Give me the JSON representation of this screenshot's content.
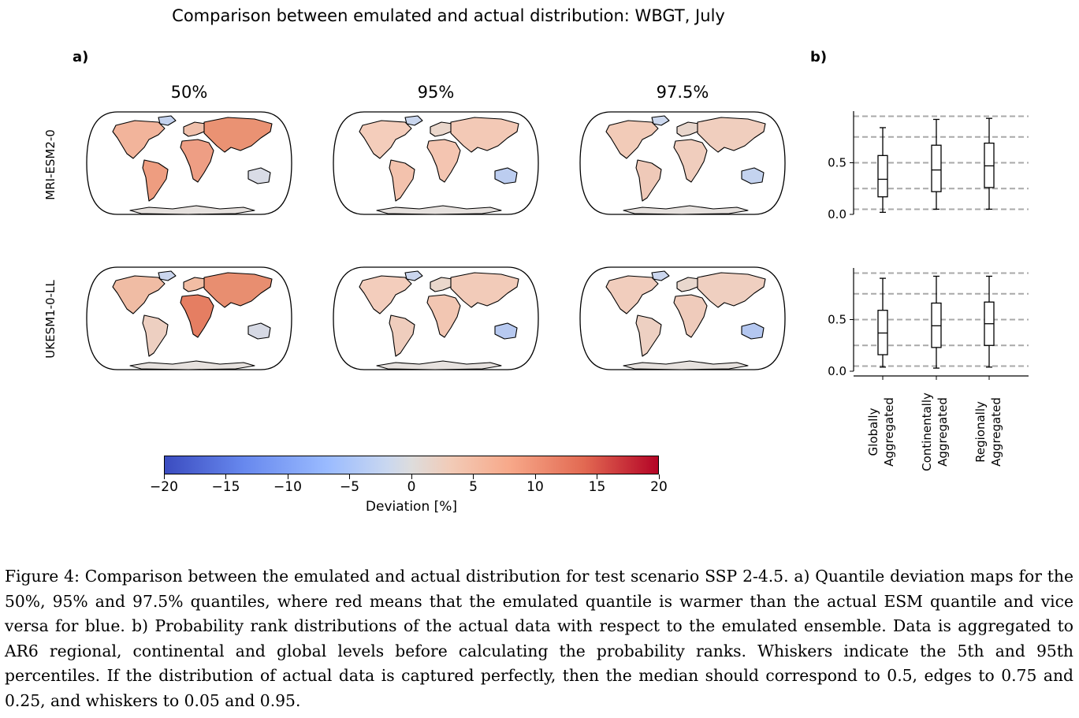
{
  "figure_title": "Comparison between emulated and actual distribution: WBGT, July",
  "panel_a_label": "a)",
  "panel_b_label": "b)",
  "quantile_columns": [
    "50%",
    "95%",
    "97.5%"
  ],
  "model_rows": [
    "MRI-ESM2-0",
    "UKESM1-0-LL"
  ],
  "colorbar": {
    "label": "Deviation [%]",
    "ticks": [
      "−20",
      "−15",
      "−10",
      "−5",
      "0",
      "5",
      "10",
      "15",
      "20"
    ],
    "range": [
      -20,
      20
    ],
    "colors": [
      "#3b4cc0",
      "#dddcdc",
      "#b40426"
    ]
  },
  "rank_panel": {
    "ytick_labels": [
      "0.0",
      "0.5"
    ],
    "category_labels": [
      [
        "Globally",
        "Aggregated"
      ],
      [
        "Continentally",
        "Aggregated"
      ],
      [
        "Regionally",
        "Aggregated"
      ]
    ],
    "reference_lines": [
      0.05,
      0.25,
      0.5,
      0.75,
      0.95
    ]
  },
  "chart_data": [
    {
      "type": "box",
      "title": "",
      "model": "MRI-ESM2-0",
      "categories": [
        "Globally Aggregated",
        "Continentally Aggregated",
        "Regionally Aggregated"
      ],
      "boxes": [
        {
          "whisker_low": 0.02,
          "q1": 0.17,
          "median": 0.34,
          "q3": 0.57,
          "whisker_high": 0.84
        },
        {
          "whisker_low": 0.05,
          "q1": 0.22,
          "median": 0.43,
          "q3": 0.67,
          "whisker_high": 0.92
        },
        {
          "whisker_low": 0.05,
          "q1": 0.26,
          "median": 0.47,
          "q3": 0.69,
          "whisker_high": 0.93
        }
      ],
      "reference_lines": [
        0.05,
        0.25,
        0.5,
        0.75,
        0.95
      ],
      "ylim": [
        0,
        1
      ],
      "yticks": [
        0.0,
        0.5
      ]
    },
    {
      "type": "box",
      "title": "",
      "model": "UKESM1-0-LL",
      "categories": [
        "Globally Aggregated",
        "Continentally Aggregated",
        "Regionally Aggregated"
      ],
      "boxes": [
        {
          "whisker_low": 0.04,
          "q1": 0.16,
          "median": 0.37,
          "q3": 0.59,
          "whisker_high": 0.9
        },
        {
          "whisker_low": 0.03,
          "q1": 0.23,
          "median": 0.44,
          "q3": 0.66,
          "whisker_high": 0.92
        },
        {
          "whisker_low": 0.04,
          "q1": 0.25,
          "median": 0.46,
          "q3": 0.67,
          "whisker_high": 0.92
        }
      ],
      "reference_lines": [
        0.05,
        0.25,
        0.5,
        0.75,
        0.95
      ],
      "ylim": [
        0,
        1
      ],
      "yticks": [
        0.0,
        0.5
      ]
    }
  ],
  "caption": "Figure 4: Comparison between the emulated and actual distribution for test scenario SSP 2-4.5. a) Quantile deviation maps for the 50%, 95% and 97.5% quantiles, where red means that the emulated quantile is warmer than the actual ESM quantile and vice versa for blue. b) Probability rank distributions of the actual data with respect to the emulated ensemble. Data is aggregated to AR6 regional, continental and global levels before calculating the probability ranks. Whiskers indicate the 5th and 95th percentiles. If the distribution of actual data is captured perfectly, then the median should correspond to 0.5, edges to 0.75 and 0.25, and whiskers to 0.05 and 0.95."
}
